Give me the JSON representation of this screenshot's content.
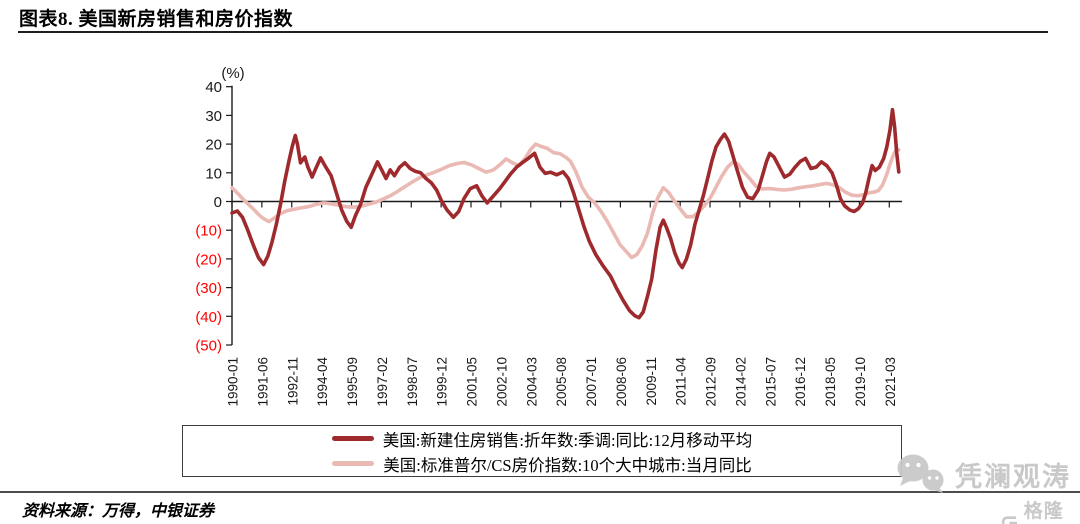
{
  "header": {
    "title": "图表8. 美国新房销售和房价指数"
  },
  "source_note": "资料来源：万得，中银证券",
  "watermark": {
    "text": "凭澜观涛",
    "logo_text": "格隆汇"
  },
  "chart_data": {
    "type": "line",
    "title": "美国新房销售和房价指数",
    "unit_label": "(%)",
    "grid": false,
    "legend_position": "bottom",
    "axis_label_color": "#1a1a1a",
    "negative_label_color": "#ff0000",
    "ylim": [
      -50,
      40
    ],
    "y_ticks": [
      40,
      30,
      20,
      10,
      0,
      -10,
      -20,
      -30,
      -40,
      -50
    ],
    "y_tick_labels": [
      "40",
      "30",
      "20",
      "10",
      "0",
      "(10)",
      "(20)",
      "(30)",
      "(40)",
      "(50)"
    ],
    "x_domain_years": [
      1990.0,
      2021.77
    ],
    "x_tick_interval_months": 17,
    "x_tick_labels": [
      "1990-01",
      "1991-06",
      "1992-11",
      "1994-04",
      "1995-09",
      "1997-02",
      "1998-07",
      "1999-12",
      "2001-05",
      "2002-10",
      "2004-03",
      "2005-08",
      "2007-01",
      "2008-06",
      "2009-11",
      "2011-04",
      "2012-09",
      "2014-02",
      "2015-07",
      "2016-12",
      "2018-05",
      "2019-10",
      "2021-03"
    ],
    "series": [
      {
        "name": "美国:新建住房销售:折年数:季调:同比:12月移动平均",
        "color": "#9E2A2E",
        "points": [
          [
            1990.0,
            -4
          ],
          [
            1990.25,
            -3.3
          ],
          [
            1990.5,
            -5.5
          ],
          [
            1990.75,
            -10
          ],
          [
            1991.0,
            -15
          ],
          [
            1991.25,
            -19.5
          ],
          [
            1991.5,
            -22
          ],
          [
            1991.7,
            -19
          ],
          [
            1991.9,
            -14
          ],
          [
            1992.1,
            -8
          ],
          [
            1992.3,
            -1
          ],
          [
            1992.5,
            7
          ],
          [
            1992.7,
            14
          ],
          [
            1992.85,
            19
          ],
          [
            1993.0,
            23
          ],
          [
            1993.1,
            20
          ],
          [
            1993.25,
            13.5
          ],
          [
            1993.45,
            15.5
          ],
          [
            1993.6,
            12
          ],
          [
            1993.8,
            8.5
          ],
          [
            1994.0,
            12
          ],
          [
            1994.2,
            15.2
          ],
          [
            1994.45,
            12
          ],
          [
            1994.7,
            9
          ],
          [
            1994.95,
            3
          ],
          [
            1995.2,
            -3
          ],
          [
            1995.45,
            -7
          ],
          [
            1995.65,
            -9
          ],
          [
            1995.85,
            -5
          ],
          [
            1996.1,
            -1
          ],
          [
            1996.35,
            5
          ],
          [
            1996.6,
            9
          ],
          [
            1996.9,
            13.8
          ],
          [
            1997.1,
            11
          ],
          [
            1997.3,
            8
          ],
          [
            1997.5,
            11
          ],
          [
            1997.7,
            9
          ],
          [
            1997.95,
            12
          ],
          [
            1998.2,
            13.5
          ],
          [
            1998.45,
            11.5
          ],
          [
            1998.7,
            10.5
          ],
          [
            1998.95,
            10
          ],
          [
            1999.2,
            8
          ],
          [
            1999.45,
            6.5
          ],
          [
            1999.7,
            4
          ],
          [
            1999.95,
            0
          ],
          [
            2000.2,
            -3
          ],
          [
            2000.5,
            -5.5
          ],
          [
            2000.75,
            -3.5
          ],
          [
            2001.0,
            1
          ],
          [
            2001.3,
            4.5
          ],
          [
            2001.6,
            5.5
          ],
          [
            2001.85,
            2
          ],
          [
            2002.1,
            -0.5
          ],
          [
            2002.4,
            2
          ],
          [
            2002.7,
            4.5
          ],
          [
            2002.95,
            7
          ],
          [
            2003.2,
            9.5
          ],
          [
            2003.5,
            12
          ],
          [
            2003.8,
            13.7
          ],
          [
            2004.05,
            15
          ],
          [
            2004.35,
            16.8
          ],
          [
            2004.6,
            12
          ],
          [
            2004.85,
            9.8
          ],
          [
            2005.1,
            10.2
          ],
          [
            2005.4,
            9.3
          ],
          [
            2005.7,
            10.3
          ],
          [
            2005.95,
            8
          ],
          [
            2006.2,
            3
          ],
          [
            2006.45,
            -3
          ],
          [
            2006.7,
            -9
          ],
          [
            2006.95,
            -14
          ],
          [
            2007.25,
            -18.5
          ],
          [
            2007.6,
            -22.5
          ],
          [
            2007.95,
            -26
          ],
          [
            2008.25,
            -30.5
          ],
          [
            2008.55,
            -34.5
          ],
          [
            2008.85,
            -38
          ],
          [
            2009.1,
            -39.8
          ],
          [
            2009.3,
            -40.5
          ],
          [
            2009.5,
            -38.5
          ],
          [
            2009.7,
            -33
          ],
          [
            2009.9,
            -27
          ],
          [
            2010.1,
            -17
          ],
          [
            2010.3,
            -9
          ],
          [
            2010.45,
            -6.5
          ],
          [
            2010.6,
            -9
          ],
          [
            2010.8,
            -13
          ],
          [
            2011.0,
            -18
          ],
          [
            2011.2,
            -21.5
          ],
          [
            2011.35,
            -23
          ],
          [
            2011.55,
            -20
          ],
          [
            2011.75,
            -15
          ],
          [
            2011.95,
            -8
          ],
          [
            2012.15,
            -3
          ],
          [
            2012.35,
            2
          ],
          [
            2012.55,
            8
          ],
          [
            2012.75,
            14
          ],
          [
            2012.95,
            19
          ],
          [
            2013.15,
            21.5
          ],
          [
            2013.35,
            23.5
          ],
          [
            2013.55,
            21
          ],
          [
            2013.75,
            16
          ],
          [
            2013.95,
            11
          ],
          [
            2014.2,
            5
          ],
          [
            2014.45,
            1.5
          ],
          [
            2014.7,
            1
          ],
          [
            2014.95,
            4
          ],
          [
            2015.15,
            9
          ],
          [
            2015.35,
            14
          ],
          [
            2015.5,
            16.8
          ],
          [
            2015.7,
            15.5
          ],
          [
            2015.95,
            12
          ],
          [
            2016.2,
            8.5
          ],
          [
            2016.45,
            9.5
          ],
          [
            2016.7,
            12
          ],
          [
            2016.95,
            14
          ],
          [
            2017.2,
            15
          ],
          [
            2017.45,
            11.5
          ],
          [
            2017.7,
            12
          ],
          [
            2017.95,
            13.8
          ],
          [
            2018.2,
            12.5
          ],
          [
            2018.45,
            10
          ],
          [
            2018.65,
            6
          ],
          [
            2018.85,
            1
          ],
          [
            2019.05,
            -1.5
          ],
          [
            2019.3,
            -3
          ],
          [
            2019.5,
            -3.5
          ],
          [
            2019.7,
            -2.5
          ],
          [
            2019.9,
            -0.5
          ],
          [
            2020.05,
            3
          ],
          [
            2020.2,
            8
          ],
          [
            2020.35,
            12.5
          ],
          [
            2020.5,
            10.8
          ],
          [
            2020.7,
            12
          ],
          [
            2020.9,
            15
          ],
          [
            2021.05,
            19
          ],
          [
            2021.2,
            25
          ],
          [
            2021.32,
            32
          ],
          [
            2021.42,
            26
          ],
          [
            2021.52,
            17
          ],
          [
            2021.62,
            10.3
          ]
        ]
      },
      {
        "name": "美国:标准普尔/CS房价指数:10个大中城市:当月同比",
        "color": "#EBB9B4",
        "points": [
          [
            1990.0,
            4.8
          ],
          [
            1990.25,
            3
          ],
          [
            1990.5,
            1
          ],
          [
            1990.75,
            -0.8
          ],
          [
            1991.0,
            -2.5
          ],
          [
            1991.25,
            -4.5
          ],
          [
            1991.5,
            -6
          ],
          [
            1991.75,
            -7
          ],
          [
            1992.0,
            -5.8
          ],
          [
            1992.3,
            -4.2
          ],
          [
            1992.6,
            -3.2
          ],
          [
            1992.9,
            -2.8
          ],
          [
            1993.2,
            -2.3
          ],
          [
            1993.6,
            -1.8
          ],
          [
            1994.0,
            -1
          ],
          [
            1994.35,
            -0.5
          ],
          [
            1994.7,
            -0.8
          ],
          [
            1995.05,
            -1.3
          ],
          [
            1995.4,
            -1.8
          ],
          [
            1995.75,
            -2
          ],
          [
            1996.1,
            -1.7
          ],
          [
            1996.45,
            -1
          ],
          [
            1996.8,
            -0.3
          ],
          [
            1997.15,
            0.8
          ],
          [
            1997.5,
            2
          ],
          [
            1997.85,
            3.5
          ],
          [
            1998.2,
            5.2
          ],
          [
            1998.55,
            6.8
          ],
          [
            1998.9,
            8.3
          ],
          [
            1999.25,
            9.3
          ],
          [
            1999.6,
            10.2
          ],
          [
            1999.95,
            11.3
          ],
          [
            2000.3,
            12.5
          ],
          [
            2000.65,
            13.2
          ],
          [
            2001.0,
            13.6
          ],
          [
            2001.35,
            12.8
          ],
          [
            2001.7,
            11.5
          ],
          [
            2002.05,
            10.2
          ],
          [
            2002.4,
            11
          ],
          [
            2002.7,
            12.8
          ],
          [
            2003.0,
            14.8
          ],
          [
            2003.3,
            13.5
          ],
          [
            2003.6,
            12.5
          ],
          [
            2003.9,
            15
          ],
          [
            2004.15,
            18
          ],
          [
            2004.4,
            20
          ],
          [
            2004.65,
            19.2
          ],
          [
            2004.95,
            18.5
          ],
          [
            2005.25,
            17
          ],
          [
            2005.55,
            16.7
          ],
          [
            2005.85,
            15.3
          ],
          [
            2006.05,
            14
          ],
          [
            2006.3,
            10.5
          ],
          [
            2006.6,
            5
          ],
          [
            2006.9,
            1.5
          ],
          [
            2007.2,
            -0.5
          ],
          [
            2007.5,
            -3.5
          ],
          [
            2007.8,
            -7
          ],
          [
            2008.1,
            -11
          ],
          [
            2008.4,
            -15
          ],
          [
            2008.7,
            -17.5
          ],
          [
            2008.95,
            -19.5
          ],
          [
            2009.2,
            -18.5
          ],
          [
            2009.45,
            -15.5
          ],
          [
            2009.7,
            -11
          ],
          [
            2009.95,
            -4
          ],
          [
            2010.2,
            1.5
          ],
          [
            2010.45,
            4.8
          ],
          [
            2010.7,
            3.2
          ],
          [
            2010.95,
            0.5
          ],
          [
            2011.25,
            -2.5
          ],
          [
            2011.55,
            -5.3
          ],
          [
            2011.85,
            -5.3
          ],
          [
            2012.15,
            -3.5
          ],
          [
            2012.45,
            -1
          ],
          [
            2012.7,
            1.5
          ],
          [
            2012.95,
            5
          ],
          [
            2013.2,
            8.5
          ],
          [
            2013.5,
            12
          ],
          [
            2013.75,
            13.7
          ],
          [
            2014.0,
            13
          ],
          [
            2014.25,
            10.5
          ],
          [
            2014.55,
            8
          ],
          [
            2014.85,
            5.3
          ],
          [
            2015.15,
            4.4
          ],
          [
            2015.5,
            4.5
          ],
          [
            2015.85,
            4.2
          ],
          [
            2016.2,
            4
          ],
          [
            2016.55,
            4.3
          ],
          [
            2016.9,
            4.8
          ],
          [
            2017.25,
            5.2
          ],
          [
            2017.6,
            5.5
          ],
          [
            2017.95,
            6
          ],
          [
            2018.2,
            6.3
          ],
          [
            2018.5,
            5.8
          ],
          [
            2018.8,
            4.8
          ],
          [
            2019.1,
            3.2
          ],
          [
            2019.4,
            2.2
          ],
          [
            2019.7,
            2
          ],
          [
            2019.95,
            2.4
          ],
          [
            2020.2,
            3
          ],
          [
            2020.45,
            3.3
          ],
          [
            2020.65,
            3.8
          ],
          [
            2020.85,
            5.8
          ],
          [
            2021.05,
            9.5
          ],
          [
            2021.2,
            13
          ],
          [
            2021.35,
            16
          ],
          [
            2021.5,
            18.3
          ],
          [
            2021.62,
            18
          ]
        ]
      }
    ]
  }
}
